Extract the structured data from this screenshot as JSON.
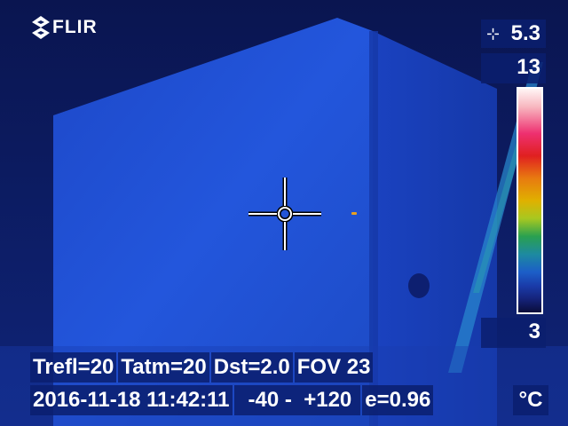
{
  "brand": {
    "logo_text": "FLIR"
  },
  "measurement": {
    "spot_icon": "spot-meter-icon",
    "spot_value": "5.3"
  },
  "scale": {
    "max": "13",
    "min": "3",
    "palette": "rainbow-hc"
  },
  "parameters": {
    "trefl": "Trefl=20",
    "tatm": "Tatm=20",
    "dst": "Dst=2.0",
    "fov": "FOV 23"
  },
  "info": {
    "datetime": "2016-11-18 11:42:11",
    "range": "-40 -  +120",
    "emissivity": "e=0.96",
    "unit": "°C"
  },
  "colors": {
    "scene_base": "#1a4ad0",
    "scene_dark": "#0a1a5c",
    "overlay": "#0a1e6e",
    "text": "#ffffff"
  }
}
